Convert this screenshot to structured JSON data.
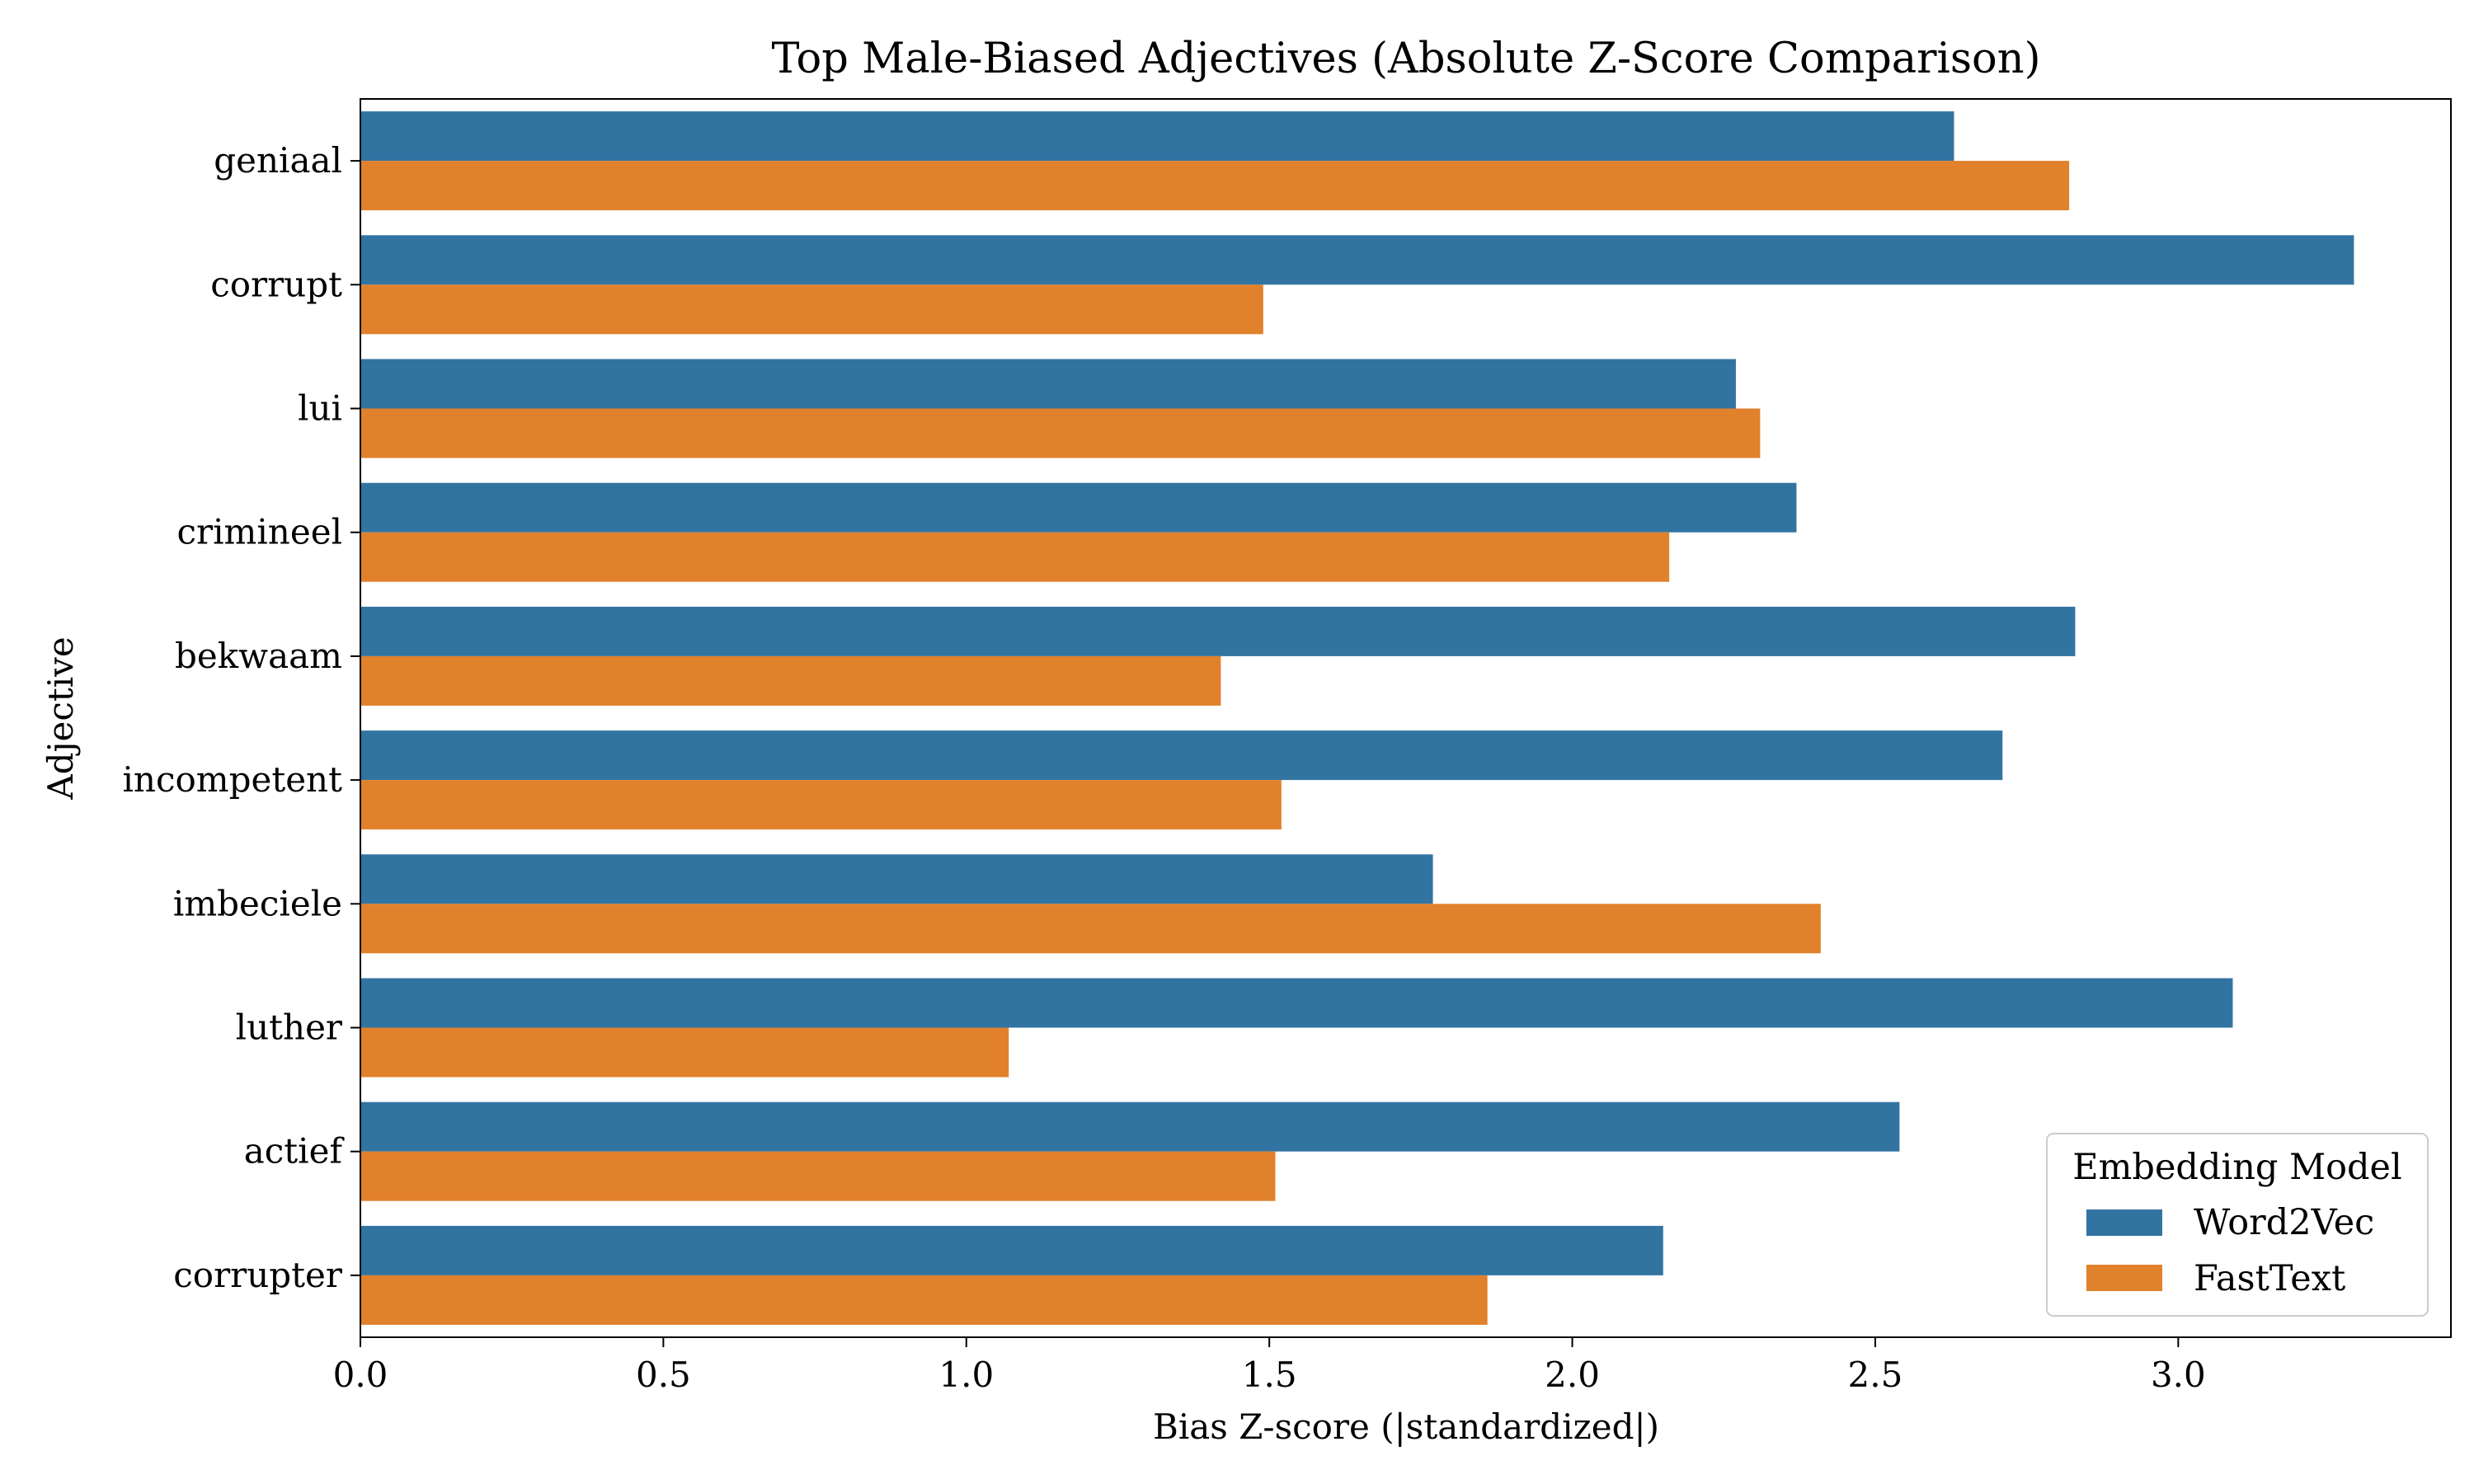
{
  "chart_data": {
    "type": "bar",
    "orientation": "horizontal",
    "title": "Top Male-Biased Adjectives (Absolute Z-Score Comparison)",
    "xlabel": "Bias Z-score (|standardized|)",
    "ylabel": "Adjective",
    "categories": [
      "geniaal",
      "corrupt",
      "lui",
      "crimineel",
      "bekwaam",
      "incompetent",
      "imbeciele",
      "luther",
      "actief",
      "corrupter"
    ],
    "series": [
      {
        "name": "Word2Vec",
        "color": "#3274a1",
        "values": [
          2.63,
          3.29,
          2.27,
          2.37,
          2.83,
          2.71,
          1.77,
          3.09,
          2.54,
          2.15
        ]
      },
      {
        "name": "FastText",
        "color": "#e1812c",
        "values": [
          2.82,
          1.49,
          2.31,
          2.16,
          1.42,
          1.52,
          2.41,
          1.07,
          1.51,
          1.86
        ]
      }
    ],
    "xlim": [
      0,
      3.45
    ],
    "xticks": [
      "0.0",
      "0.5",
      "1.0",
      "1.5",
      "2.0",
      "2.5",
      "3.0"
    ],
    "grid": false,
    "legend": {
      "title": "Embedding Model",
      "position": "lower right"
    }
  }
}
